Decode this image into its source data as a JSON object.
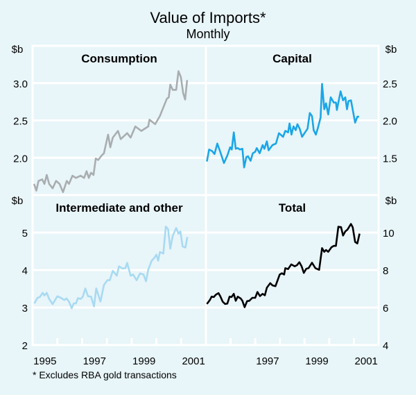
{
  "title": "Value of Imports*",
  "subtitle": "Monthly",
  "footnote": "* Excludes RBA gold transactions",
  "units": {
    "left_top": "$b",
    "right_top": "$b",
    "left_bottom": "$b",
    "right_bottom": "$b"
  },
  "colors": {
    "background": "#e8f5f9",
    "grid": "#ffffff"
  },
  "chart_data": [
    {
      "type": "line",
      "title": "Consumption",
      "position": "top-left",
      "axis_side": "left",
      "color": "#a9adb0",
      "ylim": [
        1.5,
        3.5
      ],
      "yticks": [
        "2.0",
        "2.5",
        "3.0"
      ],
      "ytick_values": [
        2.0,
        2.5,
        3.0
      ],
      "xlim": [
        1995,
        2002
      ],
      "xtick_labels": [],
      "x": [
        1995.06,
        1995.15,
        1995.24,
        1995.39,
        1995.48,
        1995.57,
        1995.67,
        1995.81,
        1995.95,
        1996.09,
        1996.23,
        1996.38,
        1996.47,
        1996.61,
        1996.75,
        1996.94,
        1997.08,
        1997.18,
        1997.27,
        1997.36,
        1997.46,
        1997.55,
        1997.65,
        1997.79,
        1997.88,
        1998.05,
        1998.14,
        1998.24,
        1998.45,
        1998.56,
        1998.82,
        1998.96,
        1999.15,
        1999.39,
        1999.67,
        1999.72,
        1999.95,
        2000.14,
        2000.42,
        2000.5,
        2000.56,
        2000.66,
        2000.8,
        2000.89,
        2000.99,
        2001.08,
        2001.16,
        2001.24
      ],
      "y": [
        1.65,
        1.56,
        1.69,
        1.71,
        1.65,
        1.77,
        1.65,
        1.59,
        1.69,
        1.65,
        1.54,
        1.69,
        1.65,
        1.76,
        1.73,
        1.76,
        1.73,
        1.82,
        1.73,
        1.8,
        1.77,
        1.99,
        1.97,
        2.03,
        2.06,
        2.31,
        2.14,
        2.27,
        2.36,
        2.25,
        2.33,
        2.27,
        2.42,
        2.36,
        2.42,
        2.51,
        2.45,
        2.56,
        2.79,
        2.81,
        2.98,
        2.91,
        2.91,
        3.16,
        3.08,
        2.87,
        2.78,
        3.04
      ]
    },
    {
      "type": "line",
      "title": "Capital",
      "position": "top-right",
      "axis_side": "right",
      "color": "#1ba6e6",
      "ylim": [
        1.0,
        3.0
      ],
      "yticks": [
        "1.5",
        "2.0",
        "2.5"
      ],
      "ytick_values": [
        1.5,
        2.0,
        2.5
      ],
      "xlim": [
        1995,
        2002
      ],
      "xtick_labels": [],
      "x": [
        1995.04,
        1995.13,
        1995.25,
        1995.35,
        1995.46,
        1995.58,
        1995.73,
        1995.87,
        1995.98,
        1996.05,
        1996.13,
        1996.21,
        1996.29,
        1996.38,
        1996.48,
        1996.55,
        1996.64,
        1996.71,
        1996.81,
        1996.9,
        1997.0,
        1997.06,
        1997.18,
        1997.3,
        1997.37,
        1997.47,
        1997.54,
        1997.7,
        1997.84,
        1997.96,
        1998.13,
        1998.22,
        1998.33,
        1998.39,
        1998.47,
        1998.55,
        1998.64,
        1998.71,
        1998.8,
        1998.9,
        1999.02,
        1999.12,
        1999.21,
        1999.3,
        1999.37,
        1999.46,
        1999.54,
        1999.65,
        1999.71,
        1999.8,
        1999.87,
        1999.96,
        2000.06,
        2000.18,
        2000.27,
        2000.31,
        2000.46,
        2000.56,
        2000.65,
        2000.72,
        2000.78,
        2000.88,
        2001.05,
        2001.14,
        2001.21
      ],
      "y": [
        1.45,
        1.61,
        1.59,
        1.55,
        1.69,
        1.58,
        1.43,
        1.53,
        1.64,
        1.61,
        1.84,
        1.62,
        1.63,
        1.61,
        1.62,
        1.37,
        1.51,
        1.52,
        1.46,
        1.56,
        1.58,
        1.63,
        1.56,
        1.67,
        1.62,
        1.72,
        1.6,
        1.67,
        1.69,
        1.83,
        1.78,
        1.86,
        1.84,
        1.96,
        1.81,
        1.92,
        1.87,
        1.95,
        1.89,
        1.78,
        1.84,
        1.89,
        2.1,
        2.06,
        1.87,
        1.81,
        1.9,
        2.04,
        2.49,
        2.15,
        2.23,
        2.08,
        2.31,
        2.24,
        2.24,
        2.14,
        2.39,
        2.27,
        2.31,
        2.15,
        2.26,
        2.27,
        1.97,
        2.05,
        2.05
      ]
    },
    {
      "type": "line",
      "title": "Intermediate and other",
      "position": "bottom-left",
      "axis_side": "left",
      "color": "#a8daf2",
      "ylim": [
        2,
        6
      ],
      "yticks": [
        "2",
        "3",
        "4",
        "5"
      ],
      "ytick_values": [
        2,
        3,
        4,
        5
      ],
      "xlim": [
        1995,
        2002
      ],
      "xtick_labels": [
        "1995",
        "1997",
        "1999",
        "2001"
      ],
      "xtick_positions": [
        1995.5,
        1997.5,
        1999.5,
        2001.5
      ],
      "x": [
        1995.07,
        1995.2,
        1995.29,
        1995.41,
        1995.48,
        1995.57,
        1995.67,
        1995.81,
        1996.0,
        1996.14,
        1996.28,
        1996.37,
        1996.47,
        1996.58,
        1996.66,
        1996.75,
        1996.83,
        1996.94,
        1997.03,
        1997.13,
        1997.24,
        1997.36,
        1997.48,
        1997.57,
        1997.74,
        1997.88,
        1998.02,
        1998.12,
        1998.24,
        1998.4,
        1998.49,
        1998.63,
        1998.75,
        1998.82,
        1998.96,
        1999.06,
        1999.2,
        1999.34,
        1999.48,
        1999.58,
        1999.67,
        1999.81,
        1999.91,
        2000.0,
        2000.07,
        2000.14,
        2000.28,
        2000.38,
        2000.47,
        2000.56,
        2000.66,
        2000.8,
        2000.89,
        2000.97,
        2001.06,
        2001.17,
        2001.25
      ],
      "y": [
        3.11,
        3.26,
        3.28,
        3.39,
        3.32,
        3.39,
        3.23,
        3.09,
        3.3,
        3.26,
        3.2,
        3.24,
        3.16,
        2.98,
        3.11,
        3.11,
        3.25,
        3.23,
        3.29,
        3.51,
        3.3,
        3.29,
        3.03,
        3.51,
        3.16,
        3.6,
        3.73,
        3.73,
        3.98,
        3.85,
        4.1,
        4.04,
        4.05,
        4.19,
        3.85,
        3.88,
        3.73,
        3.91,
        3.88,
        3.7,
        4.01,
        4.25,
        4.32,
        4.41,
        4.25,
        4.48,
        4.44,
        5.16,
        5.09,
        4.57,
        4.91,
        5.12,
        4.97,
        5.03,
        4.63,
        4.6,
        4.88
      ]
    },
    {
      "type": "line",
      "title": "Total",
      "position": "bottom-right",
      "axis_side": "right",
      "color": "#000000",
      "ylim": [
        4,
        12
      ],
      "yticks": [
        "4",
        "6",
        "8",
        "10"
      ],
      "ytick_values": [
        4,
        6,
        8,
        10
      ],
      "xlim": [
        1995,
        2002
      ],
      "xtick_labels": [
        "1997",
        "1999",
        "2001"
      ],
      "xtick_positions": [
        1997.5,
        1999.5,
        2001.5
      ],
      "x": [
        1995.04,
        1995.16,
        1995.23,
        1995.32,
        1995.4,
        1995.51,
        1995.59,
        1995.68,
        1995.78,
        1995.87,
        1995.96,
        1996.04,
        1996.13,
        1996.21,
        1996.29,
        1996.41,
        1996.48,
        1996.57,
        1996.67,
        1996.76,
        1996.88,
        1997.0,
        1997.09,
        1997.19,
        1997.3,
        1997.39,
        1997.47,
        1997.61,
        1997.7,
        1997.82,
        1997.99,
        1998.08,
        1998.17,
        1998.22,
        1998.33,
        1998.46,
        1998.6,
        1998.69,
        1998.79,
        1998.88,
        1998.97,
        1999.07,
        1999.16,
        1999.3,
        1999.44,
        1999.59,
        1999.71,
        1999.8,
        1999.87,
        1999.96,
        2000.09,
        2000.18,
        2000.27,
        2000.37,
        2000.48,
        2000.56,
        2000.65,
        2000.74,
        2000.88,
        2000.95,
        2001.05,
        2001.14,
        2001.23
      ],
      "y": [
        6.19,
        6.4,
        6.58,
        6.56,
        6.68,
        6.77,
        6.58,
        6.31,
        6.19,
        6.21,
        6.58,
        6.56,
        6.73,
        6.36,
        6.58,
        6.48,
        6.36,
        6.02,
        6.34,
        6.36,
        6.52,
        6.52,
        6.83,
        6.61,
        6.73,
        6.65,
        7.06,
        7.3,
        7.18,
        7.14,
        7.76,
        7.83,
        7.76,
        8.1,
        8.05,
        8.3,
        8.2,
        8.26,
        8.42,
        8.2,
        7.85,
        8.07,
        8.1,
        8.39,
        8.1,
        8.01,
        9.17,
        8.97,
        9.07,
        8.97,
        9.22,
        9.29,
        9.29,
        10.31,
        10.29,
        9.84,
        10.06,
        10.16,
        10.46,
        10.29,
        9.5,
        9.42,
        9.94
      ]
    }
  ]
}
